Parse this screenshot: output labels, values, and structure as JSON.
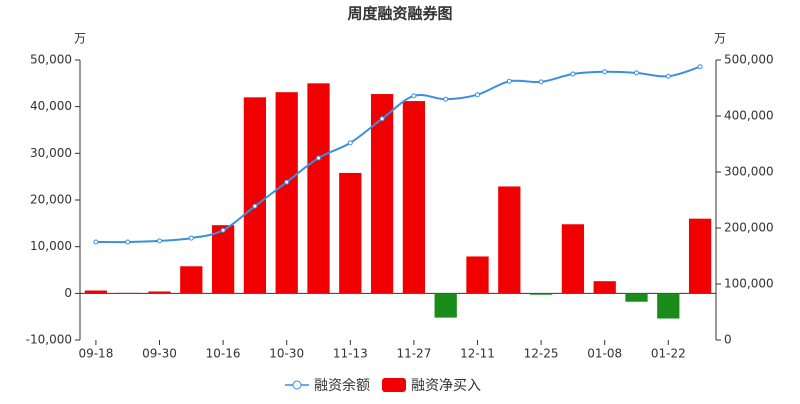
{
  "chart_data": {
    "type": "bar-line",
    "title": "周度融资融券图",
    "y_unit": "万",
    "y2_unit": "万",
    "categories": [
      "09-18",
      null,
      "09-30",
      null,
      "10-16",
      null,
      "10-30",
      null,
      "11-13",
      null,
      "11-27",
      null,
      "12-11",
      null,
      "12-25",
      null,
      "01-08",
      null,
      "01-22",
      null
    ],
    "ylim": [
      -10000,
      50000
    ],
    "yticks": [
      {
        "value": -10000,
        "label": "-10,000"
      },
      0,
      {
        "value": 10000,
        "label": "10,000"
      },
      {
        "value": 20000,
        "label": "20,000"
      },
      {
        "value": 30000,
        "label": "30,000"
      },
      {
        "value": 40000,
        "label": "40,000"
      },
      {
        "value": 50000,
        "label": "50,000"
      }
    ],
    "y2lim": [
      0,
      500000
    ],
    "y2ticks": [
      0,
      {
        "value": 100000,
        "label": "100,000"
      },
      {
        "value": 200000,
        "label": "200,000"
      },
      {
        "value": 300000,
        "label": "300,000"
      },
      {
        "value": 400000,
        "label": "400,000"
      },
      {
        "value": 500000,
        "label": "500,000"
      }
    ],
    "grid": false,
    "legend": "bottom",
    "series": [
      {
        "name": "融资余额",
        "type": "line",
        "axis": "y2",
        "color": "#3b8fe0",
        "values": [
          175000,
          175000,
          177000,
          182000,
          196000,
          239000,
          282000,
          325000,
          352000,
          395000,
          436000,
          430000,
          438000,
          462000,
          461000,
          475000,
          479000,
          477000,
          471000,
          488000
        ]
      },
      {
        "name": "融资净买入",
        "type": "bar",
        "color": "#f00000",
        "negative_color": "#1a8c1a",
        "values": [
          600,
          100,
          400,
          5800,
          14600,
          42000,
          43100,
          45000,
          25800,
          42700,
          41200,
          -5200,
          7900,
          22900,
          -300,
          14800,
          2600,
          -1800,
          -5400,
          16000
        ]
      }
    ]
  }
}
